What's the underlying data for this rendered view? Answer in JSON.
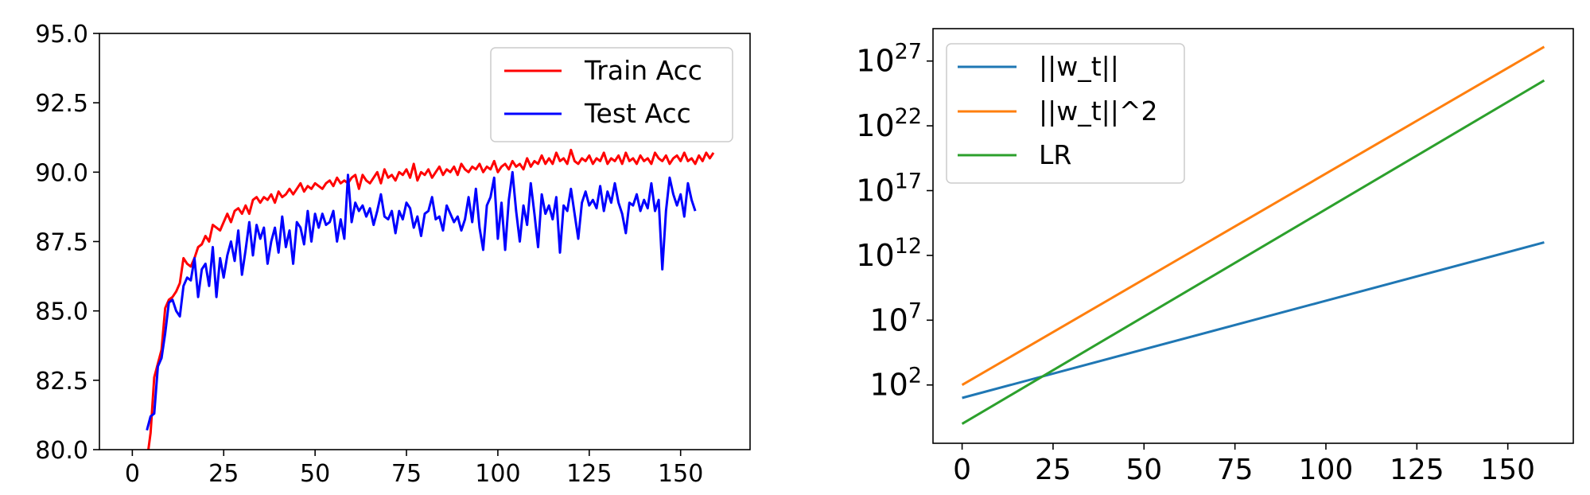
{
  "chart_data": [
    {
      "type": "line",
      "title": "",
      "xlabel": "",
      "ylabel": "",
      "xlim": [
        -9,
        169
      ],
      "ylim": [
        80.0,
        95.0
      ],
      "xticks": [
        0,
        25,
        50,
        75,
        100,
        125,
        150
      ],
      "xtick_labels": [
        "0",
        "25",
        "50",
        "75",
        "100",
        "125",
        "150"
      ],
      "yticks": [
        80.0,
        82.5,
        85.0,
        87.5,
        90.0,
        92.5,
        95.0
      ],
      "ytick_labels": [
        "80.0",
        "82.5",
        "85.0",
        "87.5",
        "90.0",
        "92.5",
        "95.0"
      ],
      "legend_position": "top-right",
      "series": [
        {
          "name": "Train Acc",
          "color": "#ff0000",
          "x_start": 4,
          "values": [
            79.6,
            80.6,
            82.6,
            83.1,
            83.6,
            85.1,
            85.4,
            85.5,
            85.7,
            86.0,
            86.9,
            86.7,
            86.6,
            86.9,
            87.3,
            87.4,
            87.7,
            87.5,
            88.1,
            88.0,
            87.9,
            88.2,
            88.5,
            88.2,
            88.6,
            88.7,
            88.5,
            88.8,
            88.5,
            89.0,
            89.1,
            88.9,
            89.1,
            89.0,
            89.2,
            88.9,
            89.3,
            89.1,
            89.2,
            89.4,
            89.2,
            89.4,
            89.6,
            89.3,
            89.5,
            89.4,
            89.6,
            89.5,
            89.4,
            89.6,
            89.7,
            89.5,
            89.8,
            89.6,
            89.7,
            89.6,
            89.8,
            89.9,
            89.4,
            89.9,
            89.7,
            89.6,
            89.8,
            90.0,
            89.6,
            90.1,
            89.8,
            89.9,
            89.7,
            90.0,
            89.9,
            90.1,
            89.8,
            90.3,
            89.7,
            90.0,
            89.9,
            90.1,
            89.8,
            90.0,
            90.2,
            89.9,
            90.1,
            90.0,
            90.2,
            89.9,
            90.3,
            90.1,
            90.0,
            90.2,
            90.1,
            90.3,
            90.0,
            90.2,
            90.1,
            90.4,
            90.0,
            90.2,
            90.3,
            90.1,
            90.4,
            90.2,
            90.3,
            90.1,
            90.5,
            90.2,
            90.4,
            90.3,
            90.6,
            90.3,
            90.5,
            90.3,
            90.7,
            90.4,
            90.5,
            90.3,
            90.8,
            90.4,
            90.3,
            90.5,
            90.4,
            90.6,
            90.3,
            90.5,
            90.4,
            90.7,
            90.3,
            90.5,
            90.4,
            90.6,
            90.3,
            90.7,
            90.4,
            90.5,
            90.3,
            90.6,
            90.4,
            90.5,
            90.3,
            90.7,
            90.5,
            90.4,
            90.6,
            90.3,
            90.5,
            90.6,
            90.4,
            90.7,
            90.4,
            90.5,
            90.3,
            90.6,
            90.4,
            90.7,
            90.5,
            90.7
          ]
        },
        {
          "name": "Test Acc",
          "color": "#0000ff",
          "x_start": 4,
          "values": [
            80.7,
            81.2,
            81.3,
            83.0,
            83.3,
            84.2,
            85.3,
            85.4,
            85.0,
            84.8,
            85.9,
            86.2,
            86.1,
            86.9,
            85.5,
            86.5,
            86.7,
            85.9,
            87.3,
            85.5,
            86.9,
            86.2,
            87.0,
            87.5,
            86.8,
            87.9,
            86.3,
            87.2,
            88.2,
            87.0,
            88.1,
            87.6,
            88.0,
            86.7,
            87.5,
            88.0,
            87.1,
            88.4,
            87.3,
            87.9,
            86.7,
            88.2,
            88.0,
            87.4,
            88.6,
            87.5,
            88.5,
            88.0,
            88.5,
            88.1,
            88.2,
            88.6,
            87.5,
            88.3,
            87.6,
            89.9,
            88.2,
            88.9,
            88.6,
            88.8,
            88.4,
            88.7,
            88.1,
            88.6,
            89.2,
            88.4,
            88.3,
            88.6,
            87.8,
            88.6,
            88.3,
            88.9,
            88.7,
            88.0,
            88.4,
            87.7,
            88.5,
            88.6,
            89.1,
            88.3,
            88.4,
            87.9,
            88.8,
            88.5,
            88.2,
            88.4,
            87.9,
            88.3,
            89.1,
            88.2,
            89.4,
            88.0,
            87.2,
            88.8,
            89.1,
            89.8,
            87.6,
            88.9,
            87.2,
            89.0,
            90.0,
            88.6,
            87.5,
            88.8,
            88.1,
            89.6,
            88.5,
            87.3,
            89.2,
            88.5,
            88.8,
            88.3,
            89.1,
            87.1,
            88.8,
            88.6,
            89.4,
            88.5,
            87.6,
            88.9,
            89.3,
            88.8,
            89.0,
            88.7,
            89.5,
            88.6,
            89.3,
            88.9,
            89.6,
            88.9,
            88.5,
            87.8,
            88.9,
            88.8,
            89.2,
            88.6,
            89.0,
            88.7,
            89.6,
            88.6,
            89.0,
            86.5,
            88.6,
            89.8,
            89.2,
            88.8,
            89.2,
            88.4,
            89.6,
            89.0,
            88.6
          ]
        }
      ]
    },
    {
      "type": "line",
      "title": "",
      "xlabel": "",
      "ylabel": "",
      "yscale": "log",
      "xlim": [
        -8,
        168
      ],
      "ylim_log10": [
        -2.5,
        29.5
      ],
      "xticks": [
        0,
        25,
        50,
        75,
        100,
        125,
        150
      ],
      "xtick_labels": [
        "0",
        "25",
        "50",
        "75",
        "100",
        "125",
        "150"
      ],
      "yticks": [
        {
          "base": "10",
          "exp": "2",
          "log10": 2
        },
        {
          "base": "10",
          "exp": "7",
          "log10": 7
        },
        {
          "base": "10",
          "exp": "12",
          "log10": 12
        },
        {
          "base": "10",
          "exp": "17",
          "log10": 17
        },
        {
          "base": "10",
          "exp": "22",
          "log10": 22
        },
        {
          "base": "10",
          "exp": "27",
          "log10": 27
        }
      ],
      "legend_position": "top-left",
      "series": [
        {
          "name": "||w_t||",
          "color": "#1f77b4",
          "x": [
            0,
            160
          ],
          "log10_values": [
            1.0,
            13.0
          ]
        },
        {
          "name": "||w_t||^2",
          "color": "#ff7f0e",
          "x": [
            0,
            160
          ],
          "log10_values": [
            2.0,
            28.1
          ]
        },
        {
          "name": "LR",
          "color": "#2ca02c",
          "x": [
            0,
            160
          ],
          "log10_values": [
            -1.0,
            25.5
          ]
        }
      ]
    }
  ]
}
